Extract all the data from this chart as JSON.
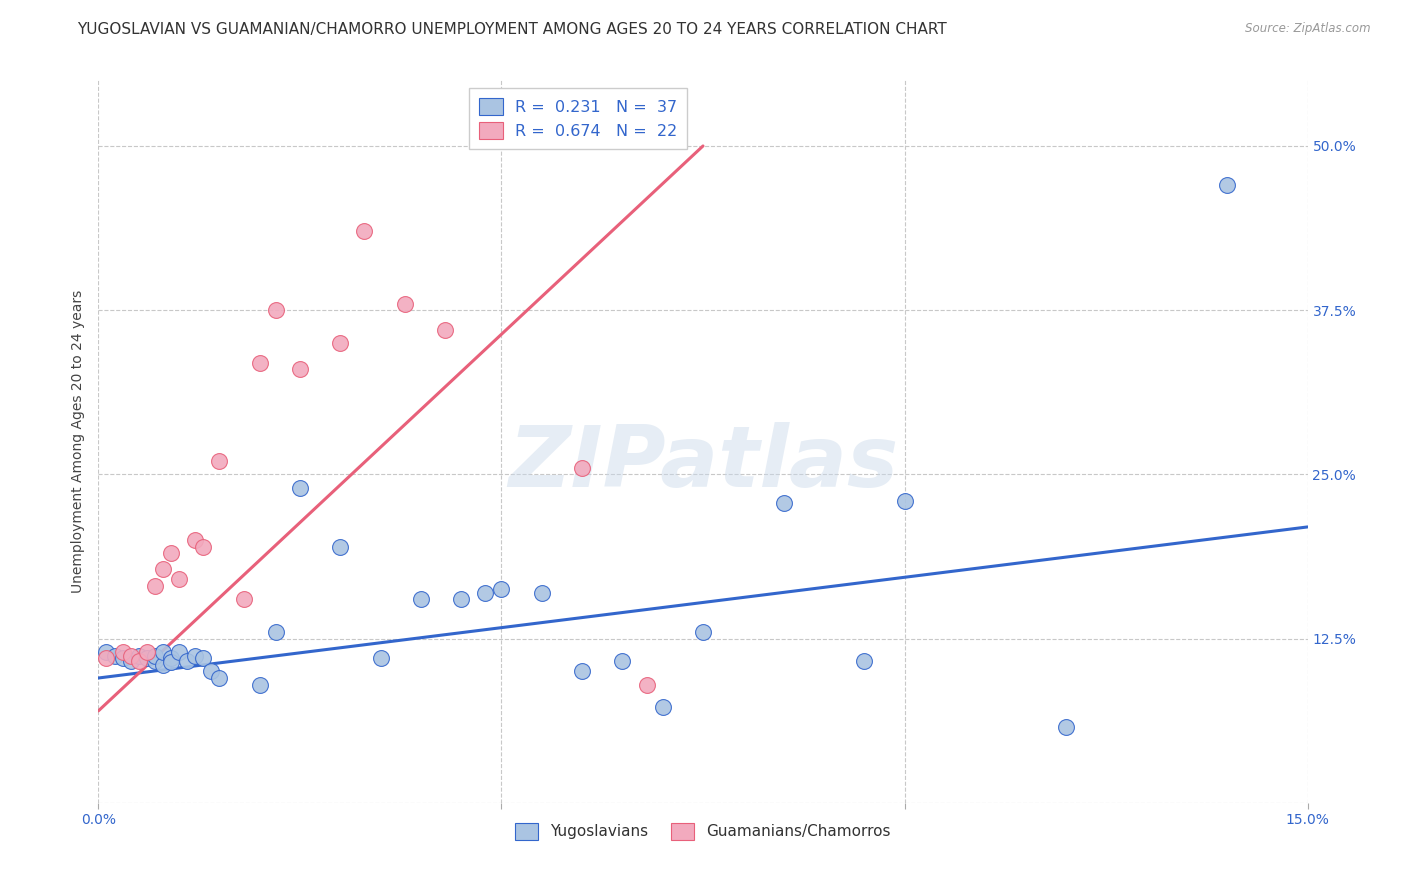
{
  "title": "YUGOSLAVIAN VS GUAMANIAN/CHAMORRO UNEMPLOYMENT AMONG AGES 20 TO 24 YEARS CORRELATION CHART",
  "source": "Source: ZipAtlas.com",
  "ylabel": "Unemployment Among Ages 20 to 24 years",
  "xlim": [
    0.0,
    0.15
  ],
  "ylim": [
    0.0,
    0.55
  ],
  "x_ticks": [
    0.0,
    0.05,
    0.1,
    0.15
  ],
  "x_tick_labels": [
    "0.0%",
    "",
    "",
    "15.0%"
  ],
  "y_ticks_right": [
    0.0,
    0.125,
    0.25,
    0.375,
    0.5
  ],
  "y_tick_labels_right": [
    "",
    "12.5%",
    "25.0%",
    "37.5%",
    "50.0%"
  ],
  "grid_color": "#c8c8c8",
  "background_color": "#ffffff",
  "watermark_text": "ZIPatlas",
  "legend_r1": "0.231",
  "legend_n1": "37",
  "legend_r2": "0.674",
  "legend_n2": "22",
  "series1_label": "Yugoslavians",
  "series2_label": "Guamanians/Chamorros",
  "series1_color": "#aac4e2",
  "series2_color": "#f2aabe",
  "line1_color": "#3366cc",
  "line2_color": "#e8607a",
  "title_fontsize": 11,
  "axis_label_fontsize": 10,
  "tick_fontsize": 10,
  "tick_color": "#3366cc",
  "yugoslav_x": [
    0.001,
    0.002,
    0.003,
    0.004,
    0.005,
    0.006,
    0.007,
    0.007,
    0.008,
    0.008,
    0.009,
    0.009,
    0.01,
    0.011,
    0.012,
    0.013,
    0.014,
    0.015,
    0.02,
    0.022,
    0.025,
    0.03,
    0.035,
    0.04,
    0.045,
    0.048,
    0.05,
    0.055,
    0.06,
    0.065,
    0.07,
    0.075,
    0.085,
    0.095,
    0.1,
    0.12,
    0.14
  ],
  "yugoslav_y": [
    0.115,
    0.112,
    0.11,
    0.108,
    0.112,
    0.11,
    0.108,
    0.112,
    0.105,
    0.115,
    0.11,
    0.107,
    0.115,
    0.108,
    0.112,
    0.11,
    0.1,
    0.095,
    0.09,
    0.13,
    0.24,
    0.195,
    0.11,
    0.155,
    0.155,
    0.16,
    0.163,
    0.16,
    0.1,
    0.108,
    0.073,
    0.13,
    0.228,
    0.108,
    0.23,
    0.058,
    0.47
  ],
  "guam_x": [
    0.001,
    0.003,
    0.004,
    0.005,
    0.006,
    0.007,
    0.008,
    0.009,
    0.01,
    0.012,
    0.013,
    0.015,
    0.018,
    0.02,
    0.022,
    0.025,
    0.03,
    0.033,
    0.038,
    0.043,
    0.06,
    0.068
  ],
  "guam_y": [
    0.11,
    0.115,
    0.112,
    0.108,
    0.115,
    0.165,
    0.178,
    0.19,
    0.17,
    0.2,
    0.195,
    0.26,
    0.155,
    0.335,
    0.375,
    0.33,
    0.35,
    0.435,
    0.38,
    0.36,
    0.255,
    0.09
  ],
  "yug_trendline_x": [
    0.0,
    0.15
  ],
  "yug_trendline_y": [
    0.095,
    0.21
  ],
  "guam_trendline_x": [
    0.0,
    0.075
  ],
  "guam_trendline_y": [
    0.07,
    0.5
  ]
}
